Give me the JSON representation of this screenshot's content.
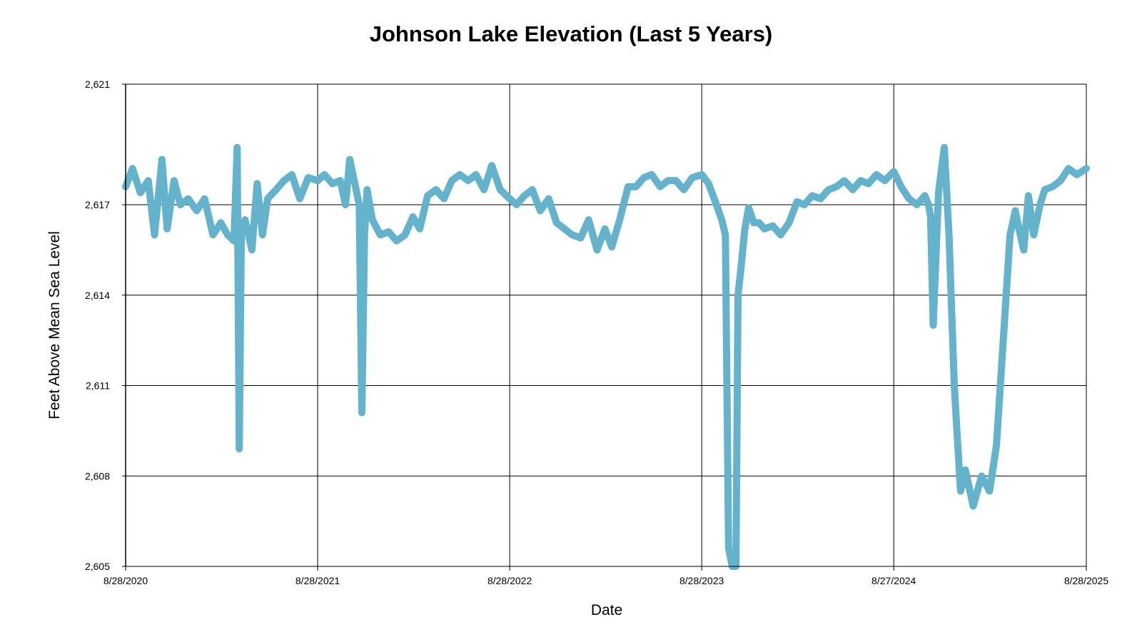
{
  "chart_data": {
    "type": "line",
    "title": "Johnson Lake Elevation (Last 5 Years)",
    "xlabel": "Date",
    "ylabel": "Feet Above Mean Sea Level",
    "ylim": [
      2605,
      2621
    ],
    "yticks": [
      2605,
      2608,
      2611,
      2614,
      2617,
      2621
    ],
    "ytick_labels": [
      "2,605",
      "2,608",
      "2,611",
      "2,614",
      "2,617",
      "2,621"
    ],
    "xlim": [
      "2020-08-28",
      "2025-08-28"
    ],
    "xticks": [
      "2020-08-28",
      "2021-08-28",
      "2022-08-28",
      "2023-08-28",
      "2024-08-27",
      "2025-08-28"
    ],
    "xtick_labels": [
      "8/28/2020",
      "8/28/2021",
      "8/28/2022",
      "8/28/2023",
      "8/27/2024",
      "8/28/2025"
    ],
    "grid": true,
    "line_color": "#63b3cc",
    "series": [
      {
        "x": [
          "2020-08-28",
          "2020-09-10",
          "2020-09-25",
          "2020-10-10",
          "2020-10-22",
          "2020-11-05",
          "2020-11-15",
          "2020-11-28",
          "2020-12-10",
          "2020-12-25",
          "2021-01-10",
          "2021-01-25",
          "2021-02-10",
          "2021-02-25",
          "2021-03-10",
          "2021-03-22",
          "2021-03-28",
          "2021-04-01",
          "2021-04-05",
          "2021-04-12",
          "2021-04-25",
          "2021-05-05",
          "2021-05-15",
          "2021-05-25",
          "2021-06-10",
          "2021-06-25",
          "2021-07-10",
          "2021-07-25",
          "2021-08-10",
          "2021-08-28",
          "2021-09-10",
          "2021-09-25",
          "2021-10-10",
          "2021-10-20",
          "2021-10-28",
          "2021-11-08",
          "2021-11-15",
          "2021-11-20",
          "2021-11-25",
          "2021-11-30",
          "2021-12-10",
          "2021-12-25",
          "2022-01-10",
          "2022-01-25",
          "2022-02-10",
          "2022-02-25",
          "2022-03-10",
          "2022-03-25",
          "2022-04-10",
          "2022-04-25",
          "2022-05-10",
          "2022-05-25",
          "2022-06-10",
          "2022-06-25",
          "2022-07-10",
          "2022-07-25",
          "2022-08-10",
          "2022-08-28",
          "2022-09-10",
          "2022-09-25",
          "2022-10-10",
          "2022-10-25",
          "2022-11-10",
          "2022-11-25",
          "2022-12-10",
          "2022-12-25",
          "2023-01-10",
          "2023-01-25",
          "2023-02-10",
          "2023-02-25",
          "2023-03-10",
          "2023-03-25",
          "2023-04-10",
          "2023-04-25",
          "2023-05-10",
          "2023-05-25",
          "2023-06-10",
          "2023-06-25",
          "2023-07-10",
          "2023-07-25",
          "2023-08-10",
          "2023-08-28",
          "2023-09-10",
          "2023-09-25",
          "2023-10-05",
          "2023-10-12",
          "2023-10-18",
          "2023-10-25",
          "2023-11-01",
          "2023-11-05",
          "2023-11-10",
          "2023-11-18",
          "2023-11-25",
          "2023-12-05",
          "2023-12-15",
          "2023-12-25",
          "2024-01-10",
          "2024-01-25",
          "2024-02-10",
          "2024-02-25",
          "2024-03-10",
          "2024-03-25",
          "2024-04-10",
          "2024-04-25",
          "2024-05-10",
          "2024-05-25",
          "2024-06-10",
          "2024-06-25",
          "2024-07-10",
          "2024-07-25",
          "2024-08-10",
          "2024-08-27",
          "2024-09-10",
          "2024-09-25",
          "2024-10-10",
          "2024-10-25",
          "2024-11-01",
          "2024-11-05",
          "2024-11-10",
          "2024-11-20",
          "2024-12-01",
          "2024-12-10",
          "2024-12-20",
          "2024-12-25",
          "2025-01-01",
          "2025-01-10",
          "2025-01-25",
          "2025-02-10",
          "2025-02-25",
          "2025-03-10",
          "2025-03-25",
          "2025-04-05",
          "2025-04-15",
          "2025-04-22",
          "2025-05-01",
          "2025-05-10",
          "2025-05-20",
          "2025-06-01",
          "2025-06-10",
          "2025-06-25",
          "2025-07-10",
          "2025-07-25",
          "2025-08-10",
          "2025-08-28"
        ],
        "y": [
          2617.6,
          2618.2,
          2617.4,
          2617.8,
          2616.0,
          2618.5,
          2616.2,
          2617.8,
          2617.0,
          2617.2,
          2616.8,
          2617.2,
          2616.0,
          2616.4,
          2616.0,
          2615.8,
          2618.9,
          2608.9,
          2616.2,
          2616.5,
          2615.5,
          2617.7,
          2616.0,
          2617.2,
          2617.5,
          2617.8,
          2618.0,
          2617.2,
          2617.9,
          2617.8,
          2618.0,
          2617.7,
          2617.8,
          2617.0,
          2618.5,
          2617.6,
          2617.0,
          2610.1,
          2616.0,
          2617.5,
          2616.5,
          2616.0,
          2616.1,
          2615.8,
          2616.0,
          2616.6,
          2616.2,
          2617.3,
          2617.5,
          2617.2,
          2617.8,
          2618.0,
          2617.8,
          2618.0,
          2617.5,
          2618.3,
          2617.5,
          2617.2,
          2617.0,
          2617.3,
          2617.5,
          2616.8,
          2617.2,
          2616.4,
          2616.2,
          2616.0,
          2615.9,
          2616.5,
          2615.5,
          2616.2,
          2615.6,
          2616.5,
          2617.6,
          2617.6,
          2617.9,
          2618.0,
          2617.6,
          2617.8,
          2617.8,
          2617.5,
          2617.9,
          2618.0,
          2617.7,
          2617.0,
          2616.5,
          2616.0,
          2605.6,
          2605.0,
          2605.0,
          2614.0,
          2614.8,
          2616.2,
          2616.9,
          2616.4,
          2616.4,
          2616.2,
          2616.3,
          2616.0,
          2616.4,
          2617.1,
          2617.0,
          2617.3,
          2617.2,
          2617.5,
          2617.6,
          2617.8,
          2617.5,
          2617.8,
          2617.7,
          2618.0,
          2617.8,
          2618.1,
          2617.6,
          2617.2,
          2617.0,
          2617.3,
          2617.0,
          2616.6,
          2613.0,
          2617.4,
          2618.9,
          2616.0,
          2611.0,
          2609.5,
          2607.5,
          2608.2,
          2607.0,
          2608.0,
          2607.5,
          2609.0,
          2613.0,
          2616.0,
          2616.8,
          2616.2,
          2615.5,
          2617.3,
          2616.0,
          2617.0,
          2617.5,
          2617.6,
          2617.8,
          2618.2,
          2618.0,
          2618.2
        ]
      }
    ]
  }
}
